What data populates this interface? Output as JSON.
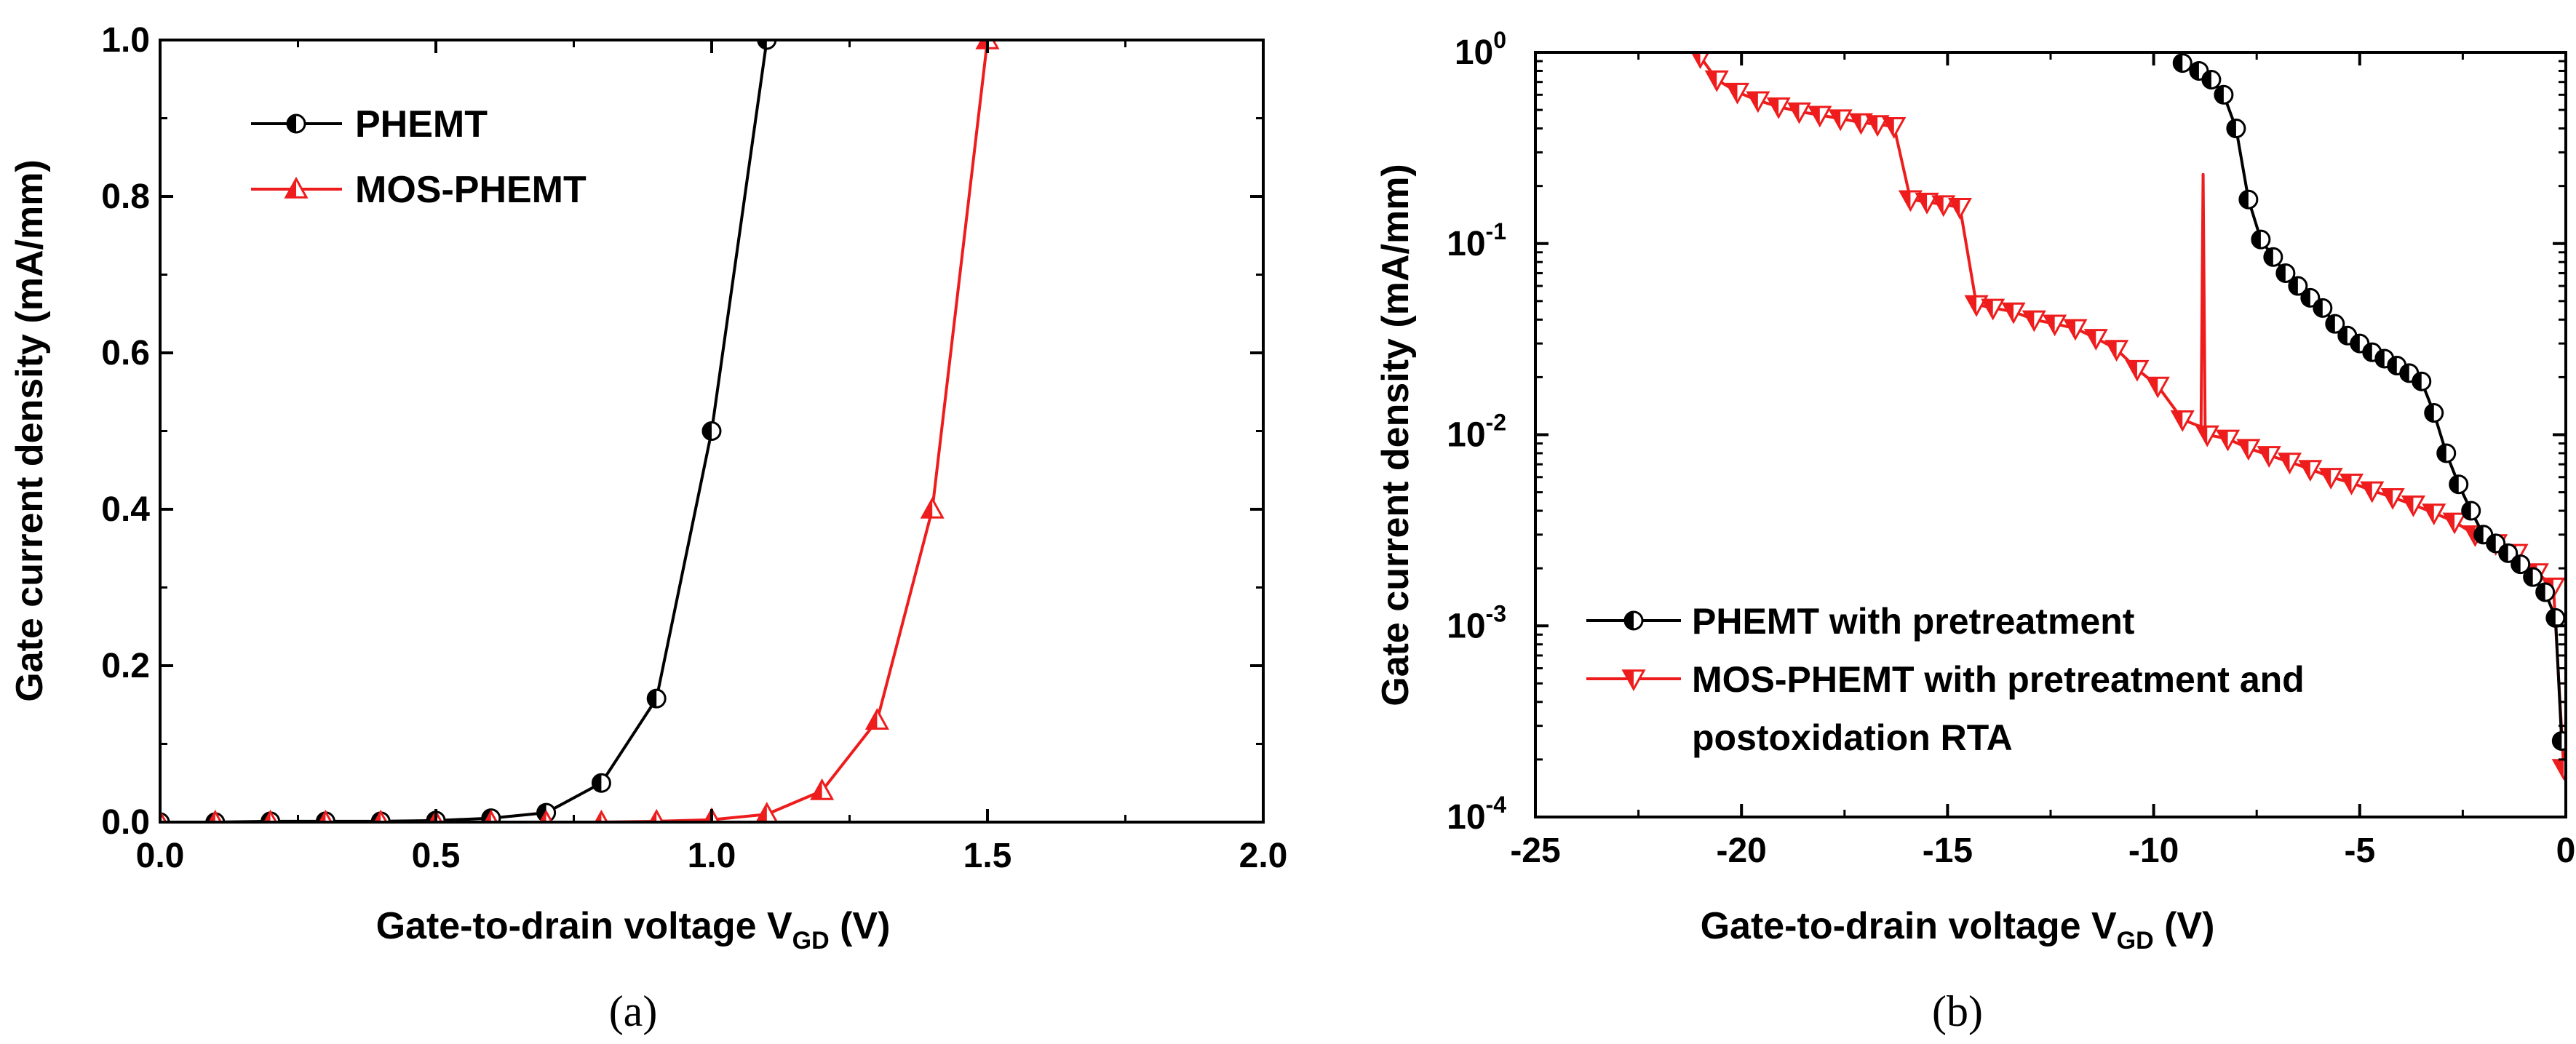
{
  "chart_data": [
    {
      "panel": "a",
      "caption": "(a)",
      "type": "line",
      "xlabel": "Gate-to-drain voltage V",
      "xlabel_sub": "GD",
      "xlabel_unit": " (V)",
      "ylabel": "Gate current density (mA/mm)",
      "xlim": [
        0.0,
        2.0
      ],
      "ylim": [
        0.0,
        1.0
      ],
      "yscale": "linear",
      "xticks": [
        "0.0",
        "0.5",
        "1.0",
        "1.5",
        "2.0"
      ],
      "yticks": [
        "0.0",
        "0.2",
        "0.4",
        "0.6",
        "0.8",
        "1.0"
      ],
      "legend_position": "top-left",
      "series": [
        {
          "name": "PHEMT",
          "color": "#000000",
          "marker": "half-filled-circle",
          "x": [
            0.0,
            0.1,
            0.2,
            0.3,
            0.4,
            0.5,
            0.6,
            0.7,
            0.8,
            0.9,
            1.0,
            1.1
          ],
          "y": [
            0.0,
            0.0,
            0.001,
            0.001,
            0.001,
            0.002,
            0.005,
            0.012,
            0.05,
            0.158,
            0.5,
            1.0
          ]
        },
        {
          "name": "MOS-PHEMT",
          "color": "#ee1c1c",
          "marker": "half-filled-triangle-up",
          "x": [
            0.0,
            0.1,
            0.2,
            0.3,
            0.4,
            0.5,
            0.6,
            0.7,
            0.8,
            0.9,
            1.0,
            1.1,
            1.2,
            1.3,
            1.4,
            1.5
          ],
          "y": [
            0.0,
            0.0,
            0.0,
            0.0,
            0.0,
            0.0,
            0.0,
            0.0,
            0.0,
            0.001,
            0.003,
            0.01,
            0.04,
            0.13,
            0.4,
            1.0
          ]
        }
      ]
    },
    {
      "panel": "b",
      "caption": "(b)",
      "type": "line",
      "xlabel": "Gate-to-drain voltage V",
      "xlabel_sub": "GD",
      "xlabel_unit": " (V)",
      "ylabel": "Gate current density (mA/mm)",
      "xlim": [
        -25,
        0
      ],
      "ylim": [
        0.0001,
        1
      ],
      "yscale": "log",
      "xticks": [
        "-25",
        "-20",
        "-15",
        "-10",
        "-5",
        "0"
      ],
      "yticks": [
        {
          "base": "10",
          "exp": "-4"
        },
        {
          "base": "10",
          "exp": "-3"
        },
        {
          "base": "10",
          "exp": "-2"
        },
        {
          "base": "10",
          "exp": "-1"
        },
        {
          "base": "10",
          "exp": "0"
        }
      ],
      "legend_position": "bottom-center",
      "series": [
        {
          "name": "PHEMT with pretreatment",
          "color": "#000000",
          "marker": "half-filled-circle",
          "x": [
            -9.3,
            -8.9,
            -8.6,
            -8.3,
            -8.0,
            -7.7,
            -7.4,
            -7.1,
            -6.8,
            -6.5,
            -6.2,
            -5.9,
            -5.6,
            -5.3,
            -5.0,
            -4.7,
            -4.4,
            -4.1,
            -3.8,
            -3.5,
            -3.2,
            -2.9,
            -2.6,
            -2.3,
            -2.0,
            -1.7,
            -1.4,
            -1.1,
            -0.8,
            -0.5,
            -0.25,
            -0.1
          ],
          "y": [
            0.88,
            0.8,
            0.72,
            0.6,
            0.4,
            0.17,
            0.105,
            0.085,
            0.07,
            0.06,
            0.052,
            0.046,
            0.038,
            0.033,
            0.03,
            0.027,
            0.025,
            0.023,
            0.021,
            0.019,
            0.013,
            0.008,
            0.0055,
            0.004,
            0.003,
            0.0027,
            0.0024,
            0.0021,
            0.0018,
            0.0015,
            0.0011,
            0.00025
          ]
        },
        {
          "name": "MOS-PHEMT with pretreatment and",
          "name_line2": "postoxidation RTA",
          "color": "#ee1c1c",
          "marker": "half-filled-triangle-down",
          "x": [
            -21.0,
            -20.6,
            -20.1,
            -19.6,
            -19.1,
            -18.6,
            -18.1,
            -17.6,
            -17.1,
            -16.7,
            -16.3,
            -15.9,
            -15.5,
            -15.1,
            -14.7,
            -14.3,
            -13.9,
            -13.4,
            -12.9,
            -12.4,
            -11.9,
            -11.4,
            -10.9,
            -10.4,
            -9.9,
            -9.3,
            -8.7,
            -8.2,
            -7.7,
            -7.2,
            -6.7,
            -6.2,
            -5.7,
            -5.2,
            -4.7,
            -4.2,
            -3.7,
            -3.2,
            -2.7,
            -2.2,
            -1.7,
            -1.2,
            -0.7,
            -0.3,
            -0.05
          ],
          "y": [
            0.95,
            0.72,
            0.62,
            0.56,
            0.52,
            0.49,
            0.47,
            0.45,
            0.43,
            0.42,
            0.41,
            0.17,
            0.165,
            0.16,
            0.155,
            0.048,
            0.046,
            0.044,
            0.04,
            0.038,
            0.036,
            0.032,
            0.028,
            0.022,
            0.018,
            0.012,
            0.01,
            0.0095,
            0.0085,
            0.0078,
            0.0072,
            0.0066,
            0.006,
            0.0056,
            0.0051,
            0.0047,
            0.0043,
            0.0039,
            0.0035,
            0.003,
            0.0027,
            0.0024,
            0.0019,
            0.0016,
            0.00018
          ]
        }
      ]
    }
  ]
}
